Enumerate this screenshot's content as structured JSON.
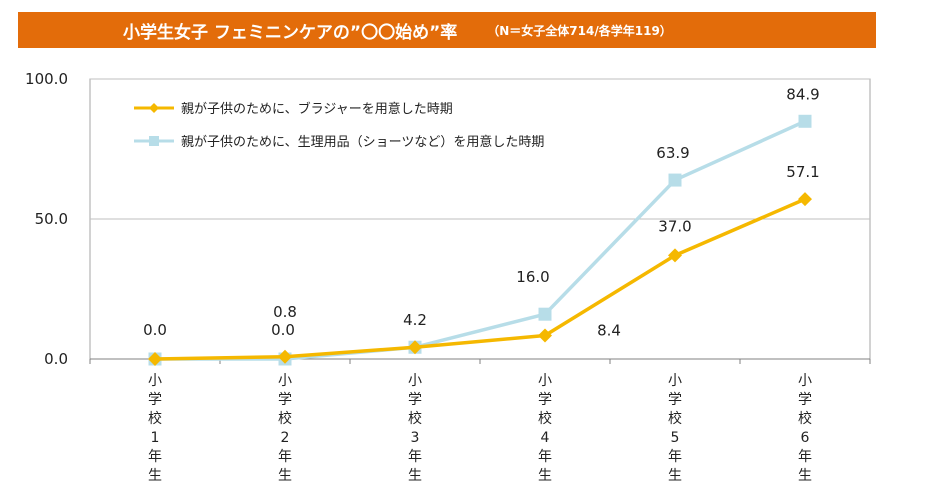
{
  "header": {
    "title": "小学生女子 フェミニンケアの”〇〇始め”率",
    "subtitle": "（N＝女子全体714/各学年119）"
  },
  "colors": {
    "header_bg": "#e36c0a",
    "series_bra": "#f5b800",
    "series_sanitary": "#b7dde8"
  },
  "chart_data": {
    "type": "line",
    "title": "小学生女子 フェミニンケアの”〇〇始め”率",
    "subtitle": "（N＝女子全体714/各学年119）",
    "categories": [
      "小学校1年生",
      "小学校2年生",
      "小学校3年生",
      "小学校4年生",
      "小学校5年生",
      "小学校6年生"
    ],
    "series": [
      {
        "name": "親が子供のために、ブラジャーを用意した時期",
        "color": "#f5b800",
        "marker": "diamond",
        "values": [
          0.0,
          0.8,
          4.2,
          8.4,
          37.0,
          57.1
        ]
      },
      {
        "name": "親が子供のために、生理用品（ショーツなど）を用意した時期",
        "color": "#b7dde8",
        "marker": "square",
        "values": [
          0.0,
          0.0,
          4.2,
          16.0,
          63.9,
          84.9
        ]
      }
    ],
    "data_labels": [
      "0.0",
      "0.0",
      "0.8",
      "4.2",
      "16.0",
      "8.4",
      "37.0",
      "63.9",
      "57.1",
      "84.9"
    ],
    "y_ticks": [
      "100.0",
      "50.0",
      "0.0"
    ],
    "ylim": [
      0,
      100
    ],
    "grid": true,
    "legend_position": "top-left"
  }
}
